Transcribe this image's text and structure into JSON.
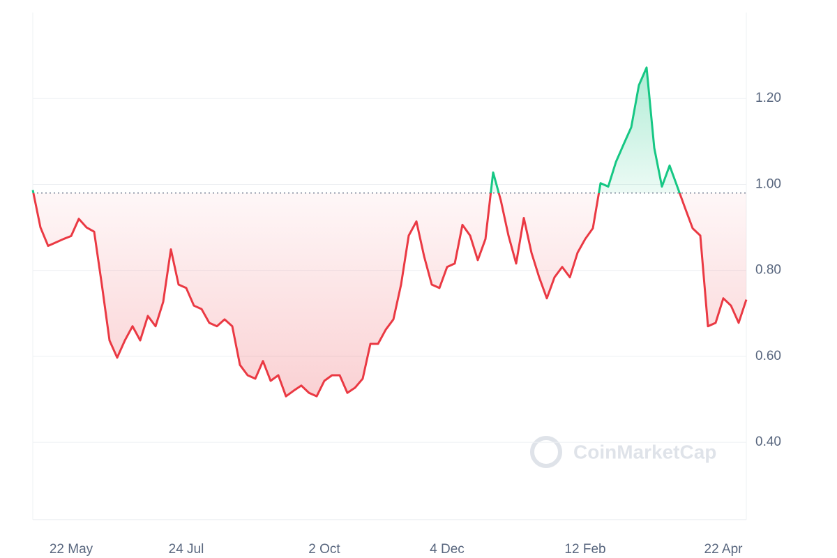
{
  "chart_data": {
    "type": "line",
    "watermark": "CoinMarketCap",
    "categories": [
      null,
      null,
      null,
      null,
      null,
      "22 May",
      null,
      null,
      null,
      null,
      null,
      null,
      null,
      null,
      null,
      null,
      null,
      null,
      null,
      null,
      "24 Jul",
      null,
      null,
      null,
      null,
      null,
      null,
      null,
      null,
      null,
      null,
      null,
      null,
      null,
      null,
      null,
      null,
      null,
      "2 Oct",
      null,
      null,
      null,
      null,
      null,
      null,
      null,
      null,
      null,
      null,
      null,
      null,
      null,
      null,
      null,
      "4 Dec",
      null,
      null,
      null,
      null,
      null,
      null,
      null,
      null,
      null,
      null,
      null,
      null,
      null,
      null,
      null,
      null,
      null,
      "12 Feb",
      null,
      null,
      null,
      null,
      null,
      null,
      null,
      null,
      null,
      null,
      null,
      null,
      null,
      null,
      null,
      null,
      null,
      "22 Apr",
      null,
      null,
      null
    ],
    "values": [
      0.987,
      0.9,
      0.857,
      0.865,
      0.873,
      0.88,
      0.92,
      0.9,
      0.89,
      0.767,
      0.637,
      0.597,
      0.637,
      0.67,
      0.637,
      0.694,
      0.67,
      0.727,
      0.849,
      0.767,
      0.759,
      0.718,
      0.71,
      0.678,
      0.67,
      0.686,
      0.67,
      0.58,
      0.556,
      0.548,
      0.589,
      0.543,
      0.556,
      0.507,
      0.52,
      0.532,
      0.515,
      0.507,
      0.543,
      0.556,
      0.556,
      0.515,
      0.527,
      0.548,
      0.629,
      0.629,
      0.662,
      0.686,
      0.767,
      0.881,
      0.914,
      0.833,
      0.767,
      0.759,
      0.808,
      0.816,
      0.906,
      0.881,
      0.824,
      0.873,
      1.028,
      0.963,
      0.881,
      0.816,
      0.922,
      0.841,
      0.784,
      0.735,
      0.784,
      0.808,
      0.784,
      0.841,
      0.873,
      0.898,
      1.003,
      0.995,
      1.052,
      1.093,
      1.133,
      1.231,
      1.272,
      1.085,
      0.995,
      1.044,
      0.995,
      0.946,
      0.898,
      0.881,
      0.67,
      0.678,
      0.735,
      0.718,
      0.678,
      0.732
    ],
    "baseline": 0.98,
    "up_color": "#16c784",
    "down_color": "#ea3943",
    "ylim": [
      0.22,
      1.4
    ],
    "yticks": [
      {
        "value": 0.4,
        "label": "0.40"
      },
      {
        "value": 0.6,
        "label": "0.60"
      },
      {
        "value": 0.8,
        "label": "0.80"
      },
      {
        "value": 1.0,
        "label": "1.00"
      },
      {
        "value": 1.2,
        "label": "1.20"
      }
    ],
    "grid": true
  }
}
